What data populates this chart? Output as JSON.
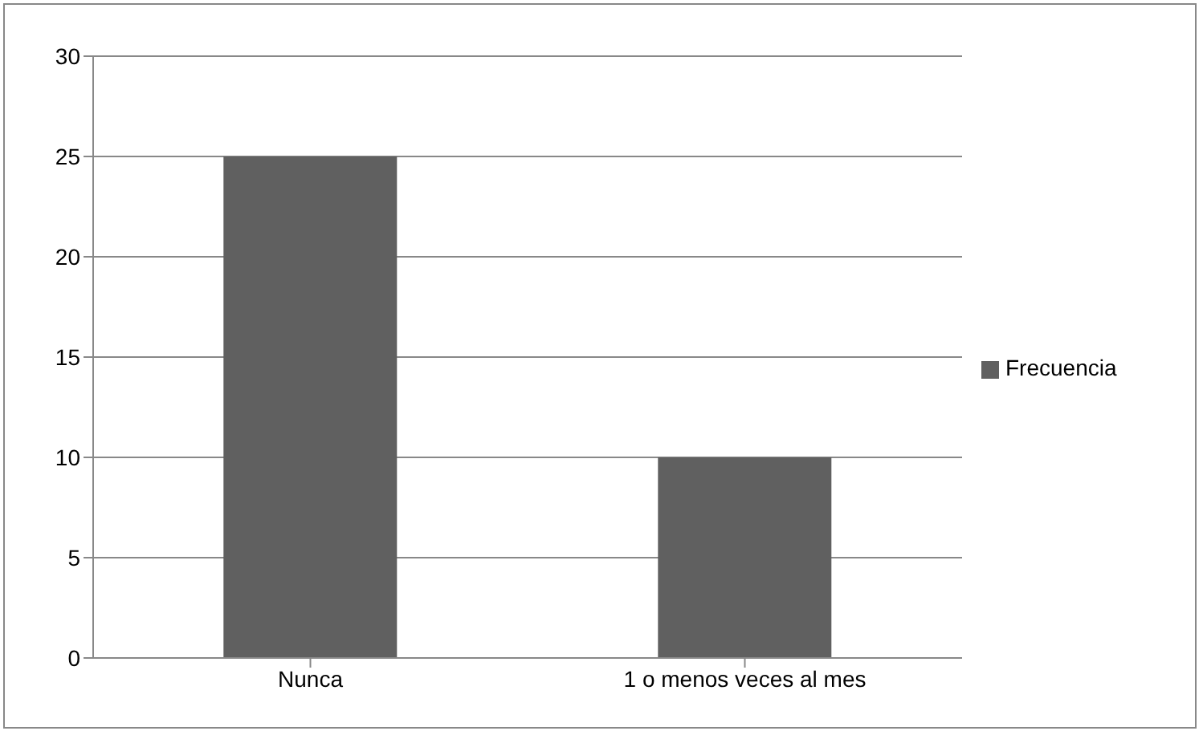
{
  "chart_data": {
    "type": "bar",
    "categories": [
      "Nunca",
      "1 o menos veces al mes"
    ],
    "series": [
      {
        "name": "Frecuencia",
        "color": "#606060",
        "values": [
          25,
          10
        ]
      }
    ],
    "ylim": [
      0,
      30
    ],
    "yticks": [
      0,
      5,
      10,
      15,
      20,
      25,
      30
    ],
    "grid": "y",
    "legend": "right"
  }
}
